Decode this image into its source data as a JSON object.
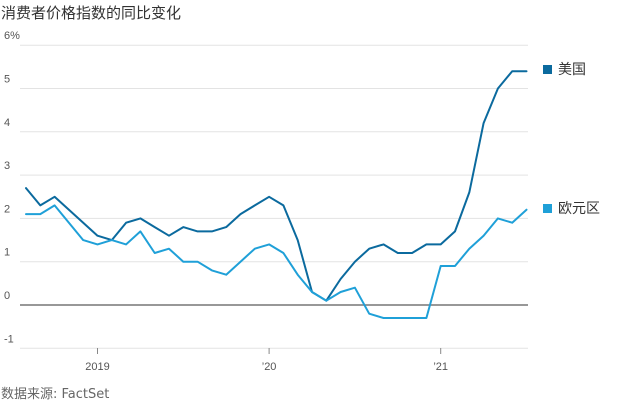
{
  "title": "消费者价格指数的同比变化",
  "source": "数据来源: FactSet",
  "chart_data": {
    "type": "line",
    "title": "消费者价格指数的同比变化",
    "xlabel": "",
    "ylabel": "",
    "ylim": [
      -1,
      6
    ],
    "y_ticks": [
      {
        "value": 6,
        "label": "6%"
      },
      {
        "value": 5,
        "label": "5"
      },
      {
        "value": 4,
        "label": "4"
      },
      {
        "value": 3,
        "label": "3"
      },
      {
        "value": 2,
        "label": "2"
      },
      {
        "value": 1,
        "label": "1"
      },
      {
        "value": 0,
        "label": "0"
      },
      {
        "value": -1,
        "label": "-1"
      }
    ],
    "x_ticks": [
      {
        "value": "2019-01",
        "label": "2019"
      },
      {
        "value": "2020-01",
        "label": "’20"
      },
      {
        "value": "2021-01",
        "label": "’21"
      }
    ],
    "x": [
      "2018-08",
      "2018-09",
      "2018-10",
      "2018-11",
      "2018-12",
      "2019-01",
      "2019-02",
      "2019-03",
      "2019-04",
      "2019-05",
      "2019-06",
      "2019-07",
      "2019-08",
      "2019-09",
      "2019-10",
      "2019-11",
      "2019-12",
      "2020-01",
      "2020-02",
      "2020-03",
      "2020-04",
      "2020-05",
      "2020-06",
      "2020-07",
      "2020-08",
      "2020-09",
      "2020-10",
      "2020-11",
      "2020-12",
      "2021-01",
      "2021-02",
      "2021-03",
      "2021-04",
      "2021-05",
      "2021-06",
      "2021-07"
    ],
    "grid": true,
    "legend": "right",
    "series": [
      {
        "name": "美国",
        "color": "#0b6a9e",
        "values": [
          2.7,
          2.3,
          2.5,
          2.2,
          1.9,
          1.6,
          1.5,
          1.9,
          2.0,
          1.8,
          1.6,
          1.8,
          1.7,
          1.7,
          1.8,
          2.1,
          2.3,
          2.5,
          2.3,
          1.5,
          0.3,
          0.1,
          0.6,
          1.0,
          1.3,
          1.4,
          1.2,
          1.2,
          1.4,
          1.4,
          1.7,
          2.6,
          4.2,
          5.0,
          5.4,
          5.4
        ]
      },
      {
        "name": "欧元区",
        "color": "#1fa0d8",
        "values": [
          2.1,
          2.1,
          2.3,
          1.9,
          1.5,
          1.4,
          1.5,
          1.4,
          1.7,
          1.2,
          1.3,
          1.0,
          1.0,
          0.8,
          0.7,
          1.0,
          1.3,
          1.4,
          1.2,
          0.7,
          0.3,
          0.1,
          0.3,
          0.4,
          -0.2,
          -0.3,
          -0.3,
          -0.3,
          -0.3,
          0.9,
          0.9,
          1.3,
          1.6,
          2.0,
          1.9,
          2.2
        ]
      }
    ]
  }
}
